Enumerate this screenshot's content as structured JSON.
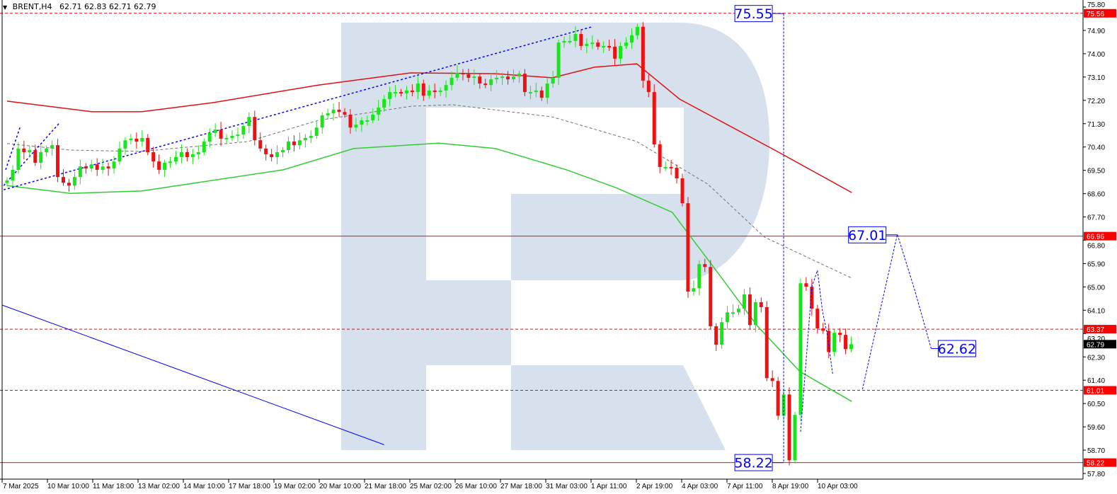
{
  "header": {
    "symbol": "BRENT,H4",
    "ohlc": "62.71 62.83 62.71 62.79"
  },
  "colors": {
    "bull": "#19e619",
    "bear": "#ee1111",
    "watermark": "#d7e1ed",
    "drawing": "#0000ff",
    "level": "#ff0000"
  },
  "chart_data": {
    "type": "candlestick",
    "title": "BRENT,H4",
    "ylim": [
      57.8,
      75.8
    ],
    "y_ticks": [
      "75.80",
      "74.90",
      "74.00",
      "73.10",
      "72.20",
      "71.30",
      "70.40",
      "69.50",
      "68.60",
      "67.70",
      "66.80",
      "65.90",
      "65.00",
      "64.10",
      "63.20",
      "62.30",
      "61.40",
      "60.50",
      "59.60",
      "58.70",
      "57.80"
    ],
    "x_ticks": [
      "7 Mar 2025",
      "10 Mar 10:00",
      "11 Mar 18:00",
      "13 Mar 02:00",
      "14 Mar 10:00",
      "17 Mar 18:00",
      "19 Mar 02:00",
      "20 Mar 10:00",
      "21 Mar 18:00",
      "25 Mar 02:00",
      "26 Mar 10:00",
      "27 Mar 18:00",
      "31 Mar 03:00",
      "1 Apr 11:00",
      "2 Apr 19:00",
      "4 Apr 03:00",
      "7 Apr 11:00",
      "8 Apr 19:00",
      "10 Apr 03:00"
    ],
    "closes": [
      69.11,
      69.52,
      70.34,
      70.2,
      70.28,
      69.79,
      70.2,
      70.34,
      70.47,
      69.24,
      69.02,
      68.91,
      69.24,
      69.65,
      69.57,
      69.73,
      69.52,
      69.65,
      69.57,
      69.84,
      70.34,
      70.66,
      70.72,
      70.61,
      70.75,
      70.2,
      69.84,
      69.52,
      69.79,
      69.84,
      70.01,
      70.2,
      70.01,
      70.12,
      70.2,
      70.61,
      70.94,
      71.07,
      70.72,
      70.75,
      70.83,
      70.88,
      71.21,
      71.56,
      70.66,
      70.34,
      70.12,
      70.01,
      70.2,
      70.28,
      70.61,
      70.47,
      70.66,
      70.75,
      70.83,
      71.15,
      71.62,
      71.7,
      71.84,
      71.75,
      71.65,
      71.15,
      71.26,
      71.43,
      71.43,
      71.65,
      71.92,
      72.25,
      72.52,
      72.52,
      72.47,
      72.58,
      72.52,
      72.85,
      72.38,
      72.58,
      72.52,
      72.58,
      72.79,
      73.07,
      73.26,
      73.21,
      73.07,
      73.12,
      72.85,
      72.79,
      73.01,
      73.07,
      73.12,
      73.01,
      73.12,
      73.23,
      72.52,
      72.52,
      72.58,
      72.3,
      72.85,
      73.07,
      74.43,
      74.49,
      74.49,
      74.76,
      74.3,
      74.38,
      74.43,
      74.27,
      74.3,
      74.27,
      73.81,
      74.3,
      74.43,
      74.71,
      75.04,
      72.96,
      72.52,
      70.5,
      69.63,
      69.63,
      69.6,
      69.19,
      68.23,
      64.82,
      64.95,
      65.88,
      65.77,
      63.48,
      62.77,
      63.64,
      64.02,
      64.02,
      64.16,
      64.71,
      63.53,
      64.41,
      64.22,
      61.48,
      61.37,
      60.03,
      60.85,
      58.31,
      60.06,
      65.14,
      65.01,
      64.16,
      63.4,
      63.31,
      62.49,
      63.23,
      63.15,
      62.6,
      62.79
    ],
    "indicators": [
      {
        "style": "upper-band",
        "color": "#e01010",
        "points": [
          [
            0,
            72.17
          ],
          [
            15.1,
            71.76
          ],
          [
            23.9,
            71.76
          ],
          [
            36.5,
            72.11
          ],
          [
            55.3,
            72.79
          ],
          [
            71.7,
            73.26
          ],
          [
            86.8,
            73.23
          ],
          [
            96.9,
            73.07
          ],
          [
            104.4,
            73.48
          ],
          [
            111.9,
            73.61
          ],
          [
            119.5,
            72.25
          ],
          [
            137.1,
            70.2
          ],
          [
            150.1,
            68.64
          ]
        ]
      },
      {
        "style": "middle-band",
        "color": "#707070",
        "points": [
          [
            0,
            70.53
          ],
          [
            11.3,
            70.28
          ],
          [
            23.9,
            70.23
          ],
          [
            42.8,
            70.61
          ],
          [
            55.3,
            71.43
          ],
          [
            71.7,
            71.97
          ],
          [
            79.2,
            72.03
          ],
          [
            96.9,
            71.56
          ],
          [
            111.9,
            70.61
          ],
          [
            124.5,
            68.97
          ],
          [
            134.6,
            66.92
          ],
          [
            150.1,
            65.34
          ]
        ]
      },
      {
        "style": "lower-band",
        "color": "#33cc33",
        "points": [
          [
            0,
            68.91
          ],
          [
            11.3,
            68.61
          ],
          [
            23.9,
            68.7
          ],
          [
            49.1,
            69.52
          ],
          [
            61.6,
            70.34
          ],
          [
            76.7,
            70.55
          ],
          [
            86.8,
            70.34
          ],
          [
            99.4,
            69.52
          ],
          [
            108.2,
            68.83
          ],
          [
            118.2,
            67.88
          ],
          [
            125.8,
            65.69
          ],
          [
            133.3,
            63.5
          ],
          [
            140.9,
            61.73
          ],
          [
            150.1,
            60.58
          ]
        ]
      }
    ],
    "levels": [
      {
        "price": 75.56,
        "label": "75.56",
        "style": "dashed"
      },
      {
        "price": 66.96,
        "label": "66.96",
        "style": "solid"
      },
      {
        "price": 63.37,
        "label": "63.37",
        "style": "dashed"
      },
      {
        "price": 61.01,
        "label": "61.01",
        "style": "dashed"
      },
      {
        "price": 58.22,
        "label": "58.22",
        "style": "solid"
      }
    ],
    "current_price": "62.79",
    "trendlines": [
      {
        "style": "dotted",
        "points": [
          [
            -0.6,
            68.75
          ],
          [
            103.8,
            75.03
          ]
        ]
      },
      {
        "style": "dotted",
        "points": [
          [
            -0.6,
            68.91
          ],
          [
            9.4,
            71.35
          ]
        ]
      },
      {
        "style": "dotted",
        "points": [
          [
            -0.25,
            69.52
          ],
          [
            2.3,
            71.16
          ]
        ]
      },
      {
        "style": "solid",
        "points": [
          [
            -0.9,
            64.3
          ],
          [
            67,
            58.91
          ]
        ]
      }
    ],
    "forecast": [
      {
        "points": [
          [
            138,
            75.55
          ],
          [
            138,
            58.22
          ]
        ]
      },
      {
        "points": [
          [
            141,
            59.41
          ],
          [
            143,
            65.01
          ],
          [
            144,
            65.64
          ],
          [
            144.9,
            64.05
          ],
          [
            145.7,
            63.23
          ],
          [
            146.7,
            61.65
          ]
        ]
      },
      {
        "points": [
          [
            152,
            61.05
          ],
          [
            155.1,
            64.05
          ],
          [
            158.2,
            67.03
          ],
          [
            161.3,
            64.87
          ],
          [
            164.2,
            62.63
          ]
        ]
      }
    ],
    "annotations": [
      {
        "text": "75.55",
        "bar": 138,
        "price": 75.55,
        "side": "left"
      },
      {
        "text": "67.01",
        "bar": 158.2,
        "price": 67.01,
        "side": "left"
      },
      {
        "text": "62.62",
        "bar": 164.2,
        "price": 62.62,
        "side": "right"
      },
      {
        "text": "58.22",
        "bar": 138,
        "price": 58.22,
        "side": "left"
      }
    ]
  }
}
